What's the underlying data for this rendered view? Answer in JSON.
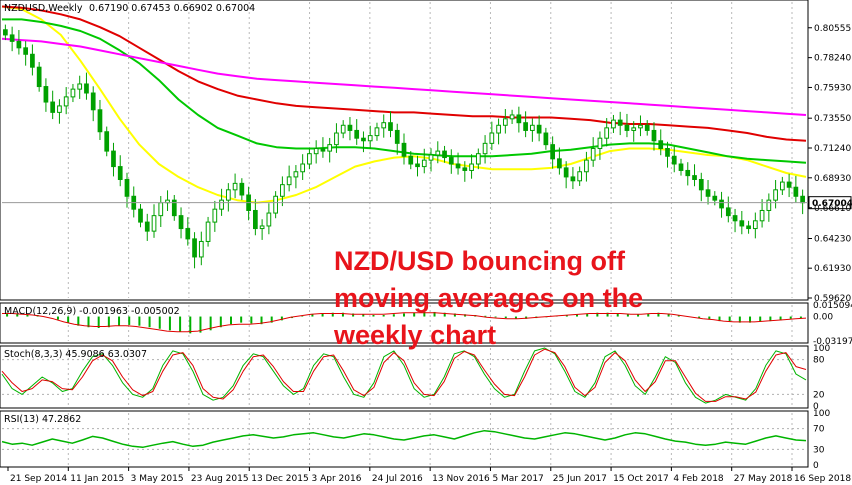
{
  "chart_data": [
    {
      "panel": "price",
      "type": "candlestick",
      "symbol_label": "NZDUSD,Weekly",
      "ohlc_label": "0.67190 0.67453 0.66902 0.67004",
      "current_price_label": "0.67004",
      "ylim": [
        0.5962,
        0.8255
      ],
      "y_ticks": [
        "0.80555",
        "0.78240",
        "0.75930",
        "0.73550",
        "0.71240",
        "0.68930",
        "0.66610",
        "0.64230",
        "0.61930",
        "0.59620"
      ],
      "x_tick_labels": [
        "21 Sep 2014",
        "11 Jan 2015",
        "3 May 2015",
        "23 Aug 2015",
        "13 Dec 2015",
        "3 Apr 2016",
        "24 Jul 2016",
        "13 Nov 2016",
        "5 Mar 2017",
        "25 Jun 2017",
        "15 Oct 2017",
        "4 Feb 2018",
        "27 May 2018",
        "16 Sep 2018"
      ],
      "closes": [
        0.8,
        0.795,
        0.79,
        0.785,
        0.775,
        0.76,
        0.748,
        0.74,
        0.745,
        0.752,
        0.758,
        0.762,
        0.755,
        0.742,
        0.725,
        0.71,
        0.698,
        0.688,
        0.675,
        0.665,
        0.655,
        0.648,
        0.66,
        0.67,
        0.672,
        0.66,
        0.65,
        0.642,
        0.628,
        0.64,
        0.655,
        0.665,
        0.672,
        0.68,
        0.685,
        0.676,
        0.664,
        0.65,
        0.652,
        0.662,
        0.675,
        0.684,
        0.69,
        0.694,
        0.7,
        0.708,
        0.712,
        0.71,
        0.715,
        0.724,
        0.73,
        0.726,
        0.72,
        0.718,
        0.722,
        0.728,
        0.732,
        0.726,
        0.716,
        0.706,
        0.7,
        0.698,
        0.703,
        0.707,
        0.71,
        0.705,
        0.7,
        0.697,
        0.695,
        0.7,
        0.708,
        0.716,
        0.724,
        0.73,
        0.735,
        0.738,
        0.732,
        0.726,
        0.73,
        0.724,
        0.715,
        0.704,
        0.697,
        0.69,
        0.687,
        0.694,
        0.703,
        0.712,
        0.72,
        0.728,
        0.734,
        0.73,
        0.726,
        0.728,
        0.73,
        0.726,
        0.718,
        0.712,
        0.706,
        0.7,
        0.695,
        0.691,
        0.688,
        0.68,
        0.675,
        0.672,
        0.666,
        0.66,
        0.656,
        0.652,
        0.65,
        0.656,
        0.664,
        0.672,
        0.68,
        0.686,
        0.682,
        0.675,
        0.67
      ],
      "series": [
        {
          "name": "MA 20",
          "color": "#ffff00",
          "values": [
            0.822,
            0.82,
            0.812,
            0.8,
            0.78,
            0.758,
            0.735,
            0.715,
            0.7,
            0.69,
            0.682,
            0.676,
            0.672,
            0.67,
            0.672,
            0.676,
            0.682,
            0.69,
            0.698,
            0.702,
            0.705,
            0.706,
            0.704,
            0.7,
            0.698,
            0.696,
            0.696,
            0.696,
            0.697,
            0.7,
            0.705,
            0.71,
            0.712,
            0.712,
            0.711,
            0.709,
            0.707,
            0.706,
            0.703,
            0.698,
            0.693,
            0.69
          ]
        },
        {
          "name": "MA 50",
          "color": "#00c800",
          "values": [
            0.812,
            0.812,
            0.81,
            0.807,
            0.803,
            0.797,
            0.788,
            0.778,
            0.765,
            0.75,
            0.738,
            0.728,
            0.722,
            0.716,
            0.713,
            0.712,
            0.712,
            0.713,
            0.713,
            0.712,
            0.71,
            0.708,
            0.707,
            0.706,
            0.706,
            0.706,
            0.707,
            0.708,
            0.71,
            0.711,
            0.713,
            0.715,
            0.716,
            0.716,
            0.715,
            0.712,
            0.709,
            0.706,
            0.704,
            0.703,
            0.702,
            0.701
          ]
        },
        {
          "name": "MA 100",
          "color": "#e00000",
          "values": [
            0.822,
            0.821,
            0.819,
            0.816,
            0.812,
            0.806,
            0.799,
            0.79,
            0.781,
            0.772,
            0.764,
            0.758,
            0.753,
            0.75,
            0.747,
            0.745,
            0.744,
            0.743,
            0.742,
            0.741,
            0.74,
            0.74,
            0.739,
            0.738,
            0.737,
            0.737,
            0.736,
            0.736,
            0.736,
            0.735,
            0.734,
            0.732,
            0.731,
            0.731,
            0.73,
            0.729,
            0.728,
            0.726,
            0.724,
            0.721,
            0.719,
            0.718
          ]
        },
        {
          "name": "MA 200",
          "color": "#ff00ff",
          "values": [
            0.797,
            0.796,
            0.795,
            0.793,
            0.791,
            0.788,
            0.785,
            0.782,
            0.779,
            0.776,
            0.773,
            0.77,
            0.768,
            0.766,
            0.765,
            0.764,
            0.763,
            0.762,
            0.761,
            0.76,
            0.759,
            0.758,
            0.757,
            0.756,
            0.755,
            0.754,
            0.753,
            0.752,
            0.751,
            0.75,
            0.749,
            0.748,
            0.747,
            0.746,
            0.745,
            0.744,
            0.743,
            0.742,
            0.741,
            0.74,
            0.739,
            0.738
          ]
        }
      ],
      "annotation_lines": [
        "NZD/USD bouncing off",
        "moving averages on the",
        "weekly chart"
      ]
    },
    {
      "panel": "macd",
      "type": "bar",
      "label": "MACD(12,26,9) -0.001963 -0.005002",
      "y_ticks": [
        "0.015094",
        "0.00",
        "-0.031973"
      ],
      "ylim": [
        -0.032,
        0.0151
      ],
      "histogram": [
        0.005,
        0.004,
        0.003,
        0.002,
        0.0,
        -0.004,
        -0.008,
        -0.012,
        -0.014,
        -0.015,
        -0.014,
        -0.012,
        -0.011,
        -0.012,
        -0.014,
        -0.016,
        -0.018,
        -0.02,
        -0.022,
        -0.021,
        -0.018,
        -0.014,
        -0.01,
        -0.008,
        -0.009,
        -0.01,
        -0.008,
        -0.005,
        -0.002,
        0.001,
        0.003,
        0.004,
        0.005,
        0.005,
        0.004,
        0.003,
        0.002,
        0.002,
        0.003,
        0.004,
        0.005,
        0.006,
        0.006,
        0.005,
        0.004,
        0.003,
        0.002,
        0.001,
        -0.001,
        -0.002,
        -0.003,
        -0.003,
        -0.002,
        -0.001,
        0.001,
        0.002,
        0.003,
        0.004,
        0.005,
        0.005,
        0.004,
        0.003,
        0.003,
        0.004,
        0.005,
        0.004,
        0.002,
        0.0,
        -0.002,
        -0.004,
        -0.006,
        -0.007,
        -0.008,
        -0.008,
        -0.007,
        -0.006,
        -0.005,
        -0.003,
        -0.002
      ],
      "signal": [
        0.004,
        0.004,
        0.003,
        0.002,
        0.0,
        -0.003,
        -0.007,
        -0.01,
        -0.012,
        -0.013,
        -0.013,
        -0.012,
        -0.012,
        -0.013,
        -0.015,
        -0.017,
        -0.019,
        -0.02,
        -0.02,
        -0.019,
        -0.016,
        -0.013,
        -0.011,
        -0.01,
        -0.01,
        -0.009,
        -0.007,
        -0.004,
        -0.001,
        0.001,
        0.003,
        0.004,
        0.004,
        0.004,
        0.003,
        0.003,
        0.003,
        0.003,
        0.004,
        0.005,
        0.005,
        0.005,
        0.005,
        0.004,
        0.003,
        0.002,
        0.001,
        -0.001,
        -0.002,
        -0.003,
        -0.003,
        -0.002,
        -0.001,
        0.0,
        0.001,
        0.002,
        0.003,
        0.004,
        0.004,
        0.004,
        0.004,
        0.003,
        0.003,
        0.004,
        0.004,
        0.003,
        0.001,
        -0.001,
        -0.003,
        -0.004,
        -0.006,
        -0.007,
        -0.007,
        -0.007,
        -0.006,
        -0.005,
        -0.004,
        -0.003,
        -0.002
      ]
    },
    {
      "panel": "stochastic",
      "type": "line",
      "label": "Stoch(8,3,3) 45.9086 63.0307",
      "y_ticks": [
        "100",
        "80",
        "20",
        "0"
      ],
      "ylim": [
        0,
        100
      ],
      "series": [
        {
          "name": "main",
          "color": "#00b400",
          "values": [
            55,
            30,
            20,
            35,
            50,
            40,
            25,
            30,
            60,
            85,
            90,
            70,
            40,
            20,
            15,
            30,
            70,
            95,
            90,
            60,
            20,
            10,
            15,
            35,
            70,
            90,
            85,
            60,
            35,
            20,
            30,
            70,
            90,
            85,
            50,
            20,
            15,
            40,
            85,
            95,
            70,
            30,
            15,
            20,
            50,
            90,
            95,
            85,
            55,
            30,
            15,
            20,
            60,
            95,
            100,
            90,
            60,
            25,
            15,
            40,
            85,
            95,
            70,
            35,
            20,
            50,
            85,
            75,
            40,
            15,
            5,
            10,
            20,
            15,
            10,
            30,
            70,
            95,
            90,
            55,
            45
          ]
        },
        {
          "name": "signal",
          "color": "#e00000",
          "values": [
            60,
            40,
            25,
            30,
            45,
            42,
            30,
            28,
            50,
            78,
            88,
            78,
            50,
            28,
            18,
            25,
            60,
            88,
            92,
            70,
            30,
            15,
            12,
            28,
            60,
            85,
            88,
            68,
            42,
            25,
            25,
            60,
            85,
            88,
            60,
            28,
            18,
            32,
            75,
            92,
            78,
            40,
            20,
            18,
            42,
            82,
            94,
            88,
            62,
            38,
            20,
            18,
            50,
            88,
            98,
            92,
            68,
            32,
            18,
            32,
            75,
            92,
            78,
            45,
            25,
            42,
            78,
            78,
            50,
            22,
            8,
            8,
            16,
            16,
            12,
            24,
            60,
            88,
            92,
            68,
            63
          ]
        }
      ]
    },
    {
      "panel": "rsi",
      "type": "line",
      "label": "RSI(13) 47.2862",
      "y_ticks": [
        "100",
        "70",
        "30",
        "0"
      ],
      "ylim": [
        0,
        100
      ],
      "series": [
        {
          "name": "RSI",
          "color": "#00b400",
          "values": [
            45,
            40,
            42,
            38,
            44,
            50,
            46,
            42,
            48,
            55,
            52,
            46,
            40,
            36,
            34,
            38,
            42,
            45,
            40,
            36,
            38,
            44,
            48,
            52,
            56,
            58,
            55,
            52,
            54,
            58,
            60,
            62,
            58,
            54,
            52,
            56,
            60,
            58,
            54,
            50,
            48,
            52,
            56,
            58,
            54,
            50,
            56,
            62,
            66,
            64,
            60,
            56,
            52,
            50,
            54,
            58,
            62,
            60,
            56,
            52,
            48,
            52,
            58,
            62,
            60,
            55,
            50,
            46,
            44,
            40,
            38,
            40,
            44,
            42,
            40,
            46,
            52,
            56,
            52,
            48,
            47
          ]
        }
      ]
    }
  ]
}
